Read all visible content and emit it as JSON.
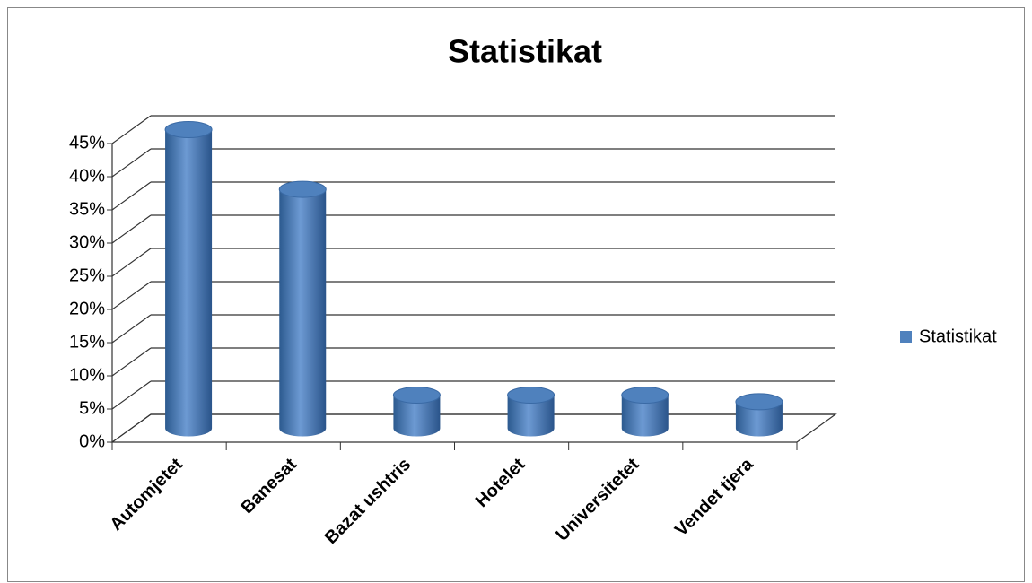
{
  "chart_data": {
    "type": "bar3d",
    "title": "Statistikat",
    "categories": [
      "Automjetet",
      "Banesat",
      "Bazat ushtris",
      "Hotelet",
      "Universitetet",
      "Vendet tjera"
    ],
    "series": [
      {
        "name": "Statistikat",
        "color": "#4f81bd",
        "values": [
          45,
          36,
          5,
          5,
          5,
          4
        ]
      }
    ],
    "ylim": [
      0,
      45
    ],
    "yticks": [
      {
        "value": 0,
        "label": "0%"
      },
      {
        "value": 5,
        "label": "5%"
      },
      {
        "value": 10,
        "label": "10%"
      },
      {
        "value": 15,
        "label": "15%"
      },
      {
        "value": 20,
        "label": "20%"
      },
      {
        "value": 25,
        "label": "25%"
      },
      {
        "value": 30,
        "label": "30%"
      },
      {
        "value": 35,
        "label": "35%"
      },
      {
        "value": 40,
        "label": "40%"
      },
      {
        "value": 45,
        "label": "45%"
      }
    ],
    "grid": true,
    "legend": "right"
  }
}
